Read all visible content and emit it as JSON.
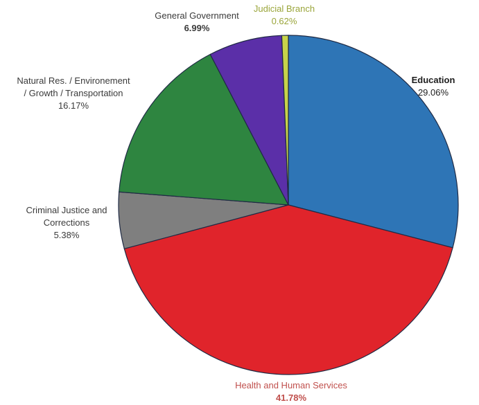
{
  "chart_data": {
    "type": "pie",
    "title": "",
    "slices": [
      {
        "name": "Education",
        "value": 29.06,
        "label": "29.06%",
        "color": "#2e75b6"
      },
      {
        "name": "Health and Human Services",
        "value": 41.78,
        "label": "41.78%",
        "color": "#e0242b"
      },
      {
        "name": "Criminal Justice and Corrections",
        "value": 5.38,
        "label": "5.38%",
        "color": "#7f7f7f"
      },
      {
        "name": "Natural Res. / Environement / Growth / Transportation",
        "value": 16.17,
        "label": "16.17%",
        "color": "#2e8540"
      },
      {
        "name": "General Government",
        "value": 6.99,
        "label": "6.99%",
        "color": "#5b2fa8"
      },
      {
        "name": "Judicial Branch",
        "value": 0.62,
        "label": "0.62%",
        "color": "#c8d44a"
      }
    ]
  },
  "labels": {
    "education": {
      "line1": "Education",
      "pct": "29.06%"
    },
    "hhs": {
      "line1": "Health and Human Services",
      "pct": "41.78%"
    },
    "criminal": {
      "line1": "Criminal Justice and",
      "line2": "Corrections",
      "pct": "5.38%"
    },
    "natural": {
      "line1": "Natural Res. / Environement",
      "line2": "/ Growth / Transportation",
      "pct": "16.17%"
    },
    "general": {
      "line1": "General Government",
      "pct": "6.99%"
    },
    "judicial": {
      "line1": "Judicial Branch",
      "pct": "0.62%"
    }
  }
}
